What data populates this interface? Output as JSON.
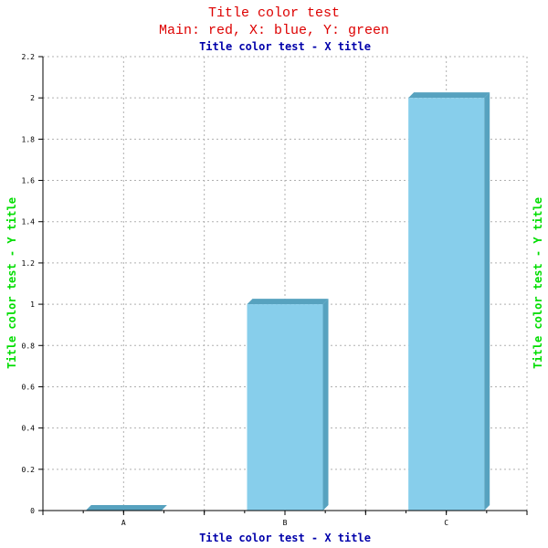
{
  "chart_data": {
    "type": "bar",
    "title_lines": [
      "Title color test",
      "Main: red, X: blue, Y: green"
    ],
    "xlabel": "Title color test - X title",
    "ylabel": "Title color test - Y title",
    "categories": [
      "A",
      "B",
      "C"
    ],
    "values": [
      0,
      1,
      2
    ],
    "ylim": [
      0,
      2.2
    ],
    "yticks": [
      "0",
      "0.2",
      "0.4",
      "0.6",
      "0.8",
      "1",
      "1.2",
      "1.4",
      "1.6",
      "1.8",
      "2",
      "2.2"
    ],
    "grid": true,
    "legend": "none",
    "colors": {
      "title": "#dd0000",
      "xlabel": "#0000aa",
      "ylabel": "#00dd00",
      "bar_face": "#87ceeb",
      "bar_side": "#57a2bf",
      "grid": "#b0b0b0"
    }
  }
}
